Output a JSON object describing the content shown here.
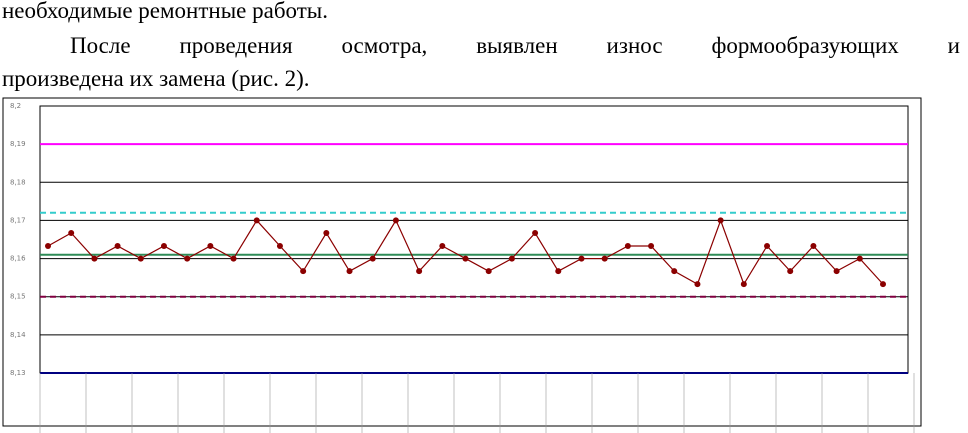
{
  "document": {
    "lines": [
      "необходимые ремонтные работы.",
      "После проведения осмотра, выявлен износ формообразующих и",
      "произведена их замена (рис. 2)."
    ]
  },
  "chart_data": {
    "type": "line",
    "x": [
      1,
      2,
      3,
      4,
      5,
      6,
      7,
      8,
      9,
      10,
      11,
      12,
      13,
      14,
      15,
      16,
      17,
      18,
      19,
      20,
      21,
      22,
      23,
      24,
      25,
      26,
      27,
      28,
      29,
      30,
      31,
      32,
      33,
      34,
      35,
      36,
      37
    ],
    "xlim": [
      1,
      37
    ],
    "series": [
      {
        "color": "#8b0000",
        "values": [
          8.1633,
          8.1667,
          8.16,
          8.1633,
          8.16,
          8.1633,
          8.16,
          8.1633,
          8.16,
          8.17,
          8.1633,
          8.1567,
          8.1667,
          8.1567,
          8.16,
          8.17,
          8.1567,
          8.1633,
          8.16,
          8.1567,
          8.16,
          8.1667,
          8.1567,
          8.16,
          8.16,
          8.1633,
          8.1633,
          8.1567,
          8.1533,
          8.17,
          8.1533,
          8.1633,
          8.1567,
          8.1633,
          8.1567,
          8.16,
          8.1533
        ]
      }
    ],
    "ylim": [
      8.13,
      8.2
    ],
    "yticks": [
      {
        "value": 8.13,
        "label": "8,13"
      },
      {
        "value": 8.14,
        "label": "8,14"
      },
      {
        "value": 8.15,
        "label": "8,15"
      },
      {
        "value": 8.16,
        "label": "8,16"
      },
      {
        "value": 8.17,
        "label": "8,17"
      },
      {
        "value": 8.18,
        "label": "8,18"
      },
      {
        "value": 8.19,
        "label": "8,19"
      },
      {
        "value": 8.2,
        "label": "8,2"
      }
    ],
    "grid": true,
    "reference_lines": [
      {
        "value": 8.19,
        "color": "#ff00ff",
        "dashed": false
      },
      {
        "value": 8.172,
        "color": "#33cccc",
        "dashed": true
      },
      {
        "value": 8.161,
        "color": "#2e8b57",
        "dashed": false
      },
      {
        "value": 8.15,
        "color": "#800040",
        "dashed": true
      },
      {
        "value": 8.13,
        "color": "#000080",
        "dashed": false
      }
    ]
  }
}
